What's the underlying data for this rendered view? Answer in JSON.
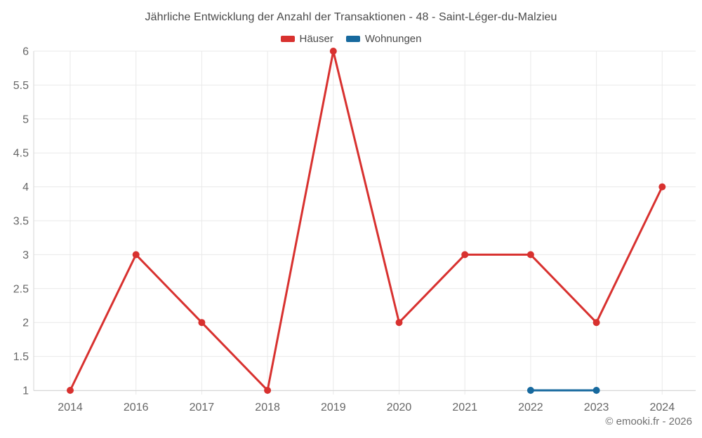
{
  "title": "Jährliche Entwicklung der Anzahl der Transaktionen - 48 - Saint-Léger-du-Malzieu",
  "legend": {
    "items": [
      {
        "label": "Häuser",
        "color": "#d8312f"
      },
      {
        "label": "Wohnungen",
        "color": "#17699e"
      }
    ]
  },
  "footer": {
    "copyright": "© emooki.fr - 2026"
  },
  "colors": {
    "grid": "#e9e9e9",
    "axis": "#d6d6d6",
    "tick_label": "#666666",
    "title_text": "#4a4a4a"
  },
  "chart_data": {
    "type": "line",
    "title": "Jährliche Entwicklung der Anzahl der Transaktionen - 48 - Saint-Léger-du-Malzieu",
    "categories": [
      "2014",
      "2016",
      "2017",
      "2018",
      "2019",
      "2020",
      "2021",
      "2022",
      "2023",
      "2024"
    ],
    "series": [
      {
        "name": "Häuser",
        "color": "#d8312f",
        "values": [
          1,
          3,
          2,
          1,
          6,
          2,
          3,
          3,
          2,
          4
        ]
      },
      {
        "name": "Wohnungen",
        "color": "#17699e",
        "values": [
          null,
          null,
          null,
          null,
          null,
          null,
          null,
          1,
          1,
          null
        ]
      }
    ],
    "xlabel": "",
    "ylabel": "",
    "ylim": [
      1,
      6
    ],
    "y_ticks": [
      1,
      1.5,
      2,
      2.5,
      3,
      3.5,
      4,
      4.5,
      5,
      5.5,
      6
    ],
    "grid": true,
    "legend_position": "top",
    "marker": "circle"
  }
}
